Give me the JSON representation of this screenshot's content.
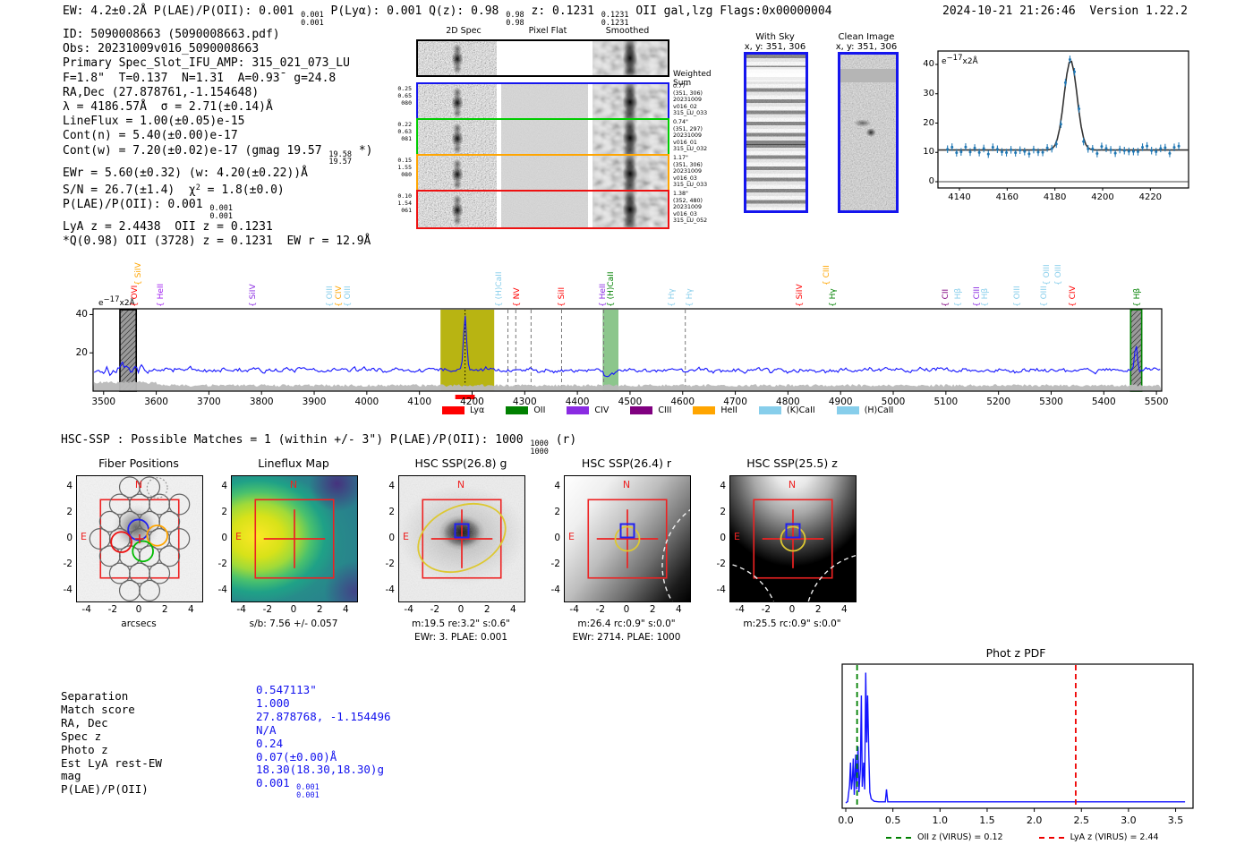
{
  "header": {
    "segments": [
      {
        "t": "EW: 4.2±0.2Å  P(LAE)/P(OII): 0.001 "
      },
      {
        "stack": [
          "0.001",
          "0.001"
        ]
      },
      {
        "t": "  P(Lyα): 0.001  Q(z): 0.98 "
      },
      {
        "stack": [
          "0.98",
          "0.98"
        ]
      },
      {
        "t": "  z: 0.1231 "
      },
      {
        "stack": [
          "0.1231",
          "0.1231"
        ]
      },
      {
        "t": " OII   gal,lzg  Flags:0x00000004"
      }
    ],
    "timestamp": "2024-10-21 21:26:46",
    "version": "Version 1.22.2"
  },
  "info": {
    "lines": [
      [
        {
          "t": "ID: 5090008663 (5090008663.pdf)"
        }
      ],
      [
        {
          "t": "Obs: 20231009v016_5090008663"
        }
      ],
      [
        {
          "t": "Primary Spec_Slot_IFU_AMP: 315_021_073_LU"
        }
      ],
      [
        {
          "t": "F=1.8\"  T=0.13̄7  N=1.3̄1  A=0.93̄  g=24.8"
        }
      ],
      [
        {
          "t": "RA,Dec (27.878761,-1.154648)"
        }
      ],
      [
        {
          "t": "λ = 4186.57Å  σ = 2.71(±0.14)Å"
        }
      ],
      [
        {
          "t": "LineFlux = 1.00(±0.05)e-15"
        }
      ],
      [
        {
          "t": "Cont(n) = 5.40(±0.00)e-17"
        }
      ],
      [
        {
          "t": "Cont(w) = 7.20(±0.02)e-17 (gmag 19.57 "
        },
        {
          "stack": [
            "19.58",
            "19.57"
          ]
        },
        {
          "t": " *)"
        }
      ],
      [
        {
          "t": "EWr = 5.60(±0.32) (w: 4.20(±0.22))Å"
        }
      ],
      [
        {
          "t": "S/N = 26.7(±1.4)  χ"
        },
        {
          "sup": "2"
        },
        {
          "t": " = 1.8(±0.0)"
        }
      ],
      [
        {
          "t": "P(LAE)/P(OII): 0.001 "
        },
        {
          "stack": [
            "0.001",
            "0.001"
          ]
        }
      ],
      [
        {
          "t": "LyA z = 2.4438  OII z = 0.1231"
        }
      ],
      [
        {
          "t": "*Q(0.98) OII (3728) z = 0.1231  EW r = 12.9Å"
        }
      ]
    ]
  },
  "cutouts": {
    "col_titles": [
      "2D Spec",
      "Pixel Flat",
      "Smoothed"
    ],
    "weighted_sum": [
      "Weighted",
      "Sum"
    ],
    "rows": [
      {
        "color": "#000000",
        "left": [],
        "right": []
      },
      {
        "color": "#1515ee",
        "left": [
          "0.25",
          "0.65",
          "080"
        ],
        "right": [
          "0.77\"",
          "(351, 306)",
          "20231009",
          "v016_02",
          "315_LU_033"
        ]
      },
      {
        "color": "#00cc00",
        "left": [
          "0.22",
          "0.63",
          "081"
        ],
        "right": [
          "0.74\"",
          "(351, 297)",
          "20231009",
          "v016_01",
          "315_LU_032"
        ]
      },
      {
        "color": "#ffa500",
        "left": [
          "0.15",
          "1.55",
          "080"
        ],
        "right": [
          "1.17\"",
          "(351, 306)",
          "20231009",
          "v016_03",
          "315_LU_033"
        ]
      },
      {
        "color": "#ee1111",
        "left": [
          "0.10",
          "1.54",
          "061"
        ],
        "right": [
          "1.38\"",
          "(352, 480)",
          "20231009",
          "v016_03",
          "315_LU_052"
        ]
      }
    ],
    "with_sky": {
      "title": "With Sky",
      "coords": "x, y: 351, 306"
    },
    "clean_image": {
      "title": "Clean Image",
      "coords": "x, y: 351, 306"
    }
  },
  "hsc": {
    "segments": [
      {
        "t": "HSC-SSP : Possible Matches = 1 (within +/- 3\")  P(LAE)/P(OII): 1000 "
      },
      {
        "stack": [
          "1000",
          "1000"
        ]
      },
      {
        "t": " (r)"
      }
    ]
  },
  "panels": {
    "ticks": [
      "-4",
      "-2",
      "0",
      "2",
      "4"
    ],
    "compass": {
      "n": "N",
      "e": "E"
    },
    "items": [
      {
        "id": "fiber_positions",
        "title": "Fiber Positions",
        "xlabel": "arcsecs",
        "xlabel2": ""
      },
      {
        "id": "lineflux_map",
        "title": "Lineflux Map",
        "xlabel": "s/b: 7.56 +/- 0.057",
        "xlabel2": ""
      },
      {
        "id": "hsc_g",
        "title": "HSC SSP(26.8) g",
        "xlabel": "m:19.5  re:3.2\"  s:0.6\"",
        "xlabel2": "EWr: 3. PLAE: 0.001"
      },
      {
        "id": "hsc_r",
        "title": "HSC SSP(26.4) r",
        "xlabel": "m:26.4 rc:0.9\"  s:0.0\"",
        "xlabel2": "EWr: 2714. PLAE: 1000"
      },
      {
        "id": "hsc_z",
        "title": "HSC SSP(25.5) z",
        "xlabel": "m:25.5 rc:0.9\"  s:0.0\"",
        "xlabel2": ""
      }
    ]
  },
  "kv": {
    "labels": [
      "Separation",
      "Match score",
      "RA, Dec",
      "Spec z",
      "Photo z",
      "Est LyA rest-EW",
      "mag",
      "P(LAE)/P(OII)"
    ],
    "values": [
      [
        {
          "t": "0.547113\""
        }
      ],
      [
        {
          "t": "1.000"
        }
      ],
      [
        {
          "t": "27.878768, -1.154496"
        }
      ],
      [
        {
          "t": "N/A"
        }
      ],
      [
        {
          "t": "0.24"
        }
      ],
      [
        {
          "t": "0.07(±0.00)Å"
        }
      ],
      [
        {
          "t": "18.30(18.30,18.30)g"
        }
      ],
      [
        {
          "t": "0.001 "
        },
        {
          "stack": [
            "0.001",
            "0.001"
          ]
        }
      ]
    ]
  },
  "colors": {
    "red": "#ff0000",
    "orange": "#ffa500",
    "purple": "#a020f0",
    "violet": "#8a2be2",
    "green": "#008000",
    "lightblue": "#87ceeb",
    "darkpurple": "#800080",
    "spectrum_line": "#1414ff",
    "point_blue": "#1f77b4",
    "accent_blue": "#1515ee"
  },
  "chart_data": [
    {
      "id": "line_fit_inset",
      "type": "scatter+line",
      "unit_label": [
        {
          "t": "e"
        },
        {
          "sup": "−17"
        },
        {
          "t": "x2Å"
        }
      ],
      "x_ticks": [
        4140,
        4160,
        4180,
        4200,
        4220
      ],
      "y_ticks": [
        0,
        10,
        20,
        30,
        40
      ],
      "xlim": [
        4131,
        4236
      ],
      "ylim": [
        -2,
        44
      ],
      "continuum": 10.8,
      "peak": {
        "center": 4186.57,
        "sigma": 2.71,
        "amplitude": 30.6
      },
      "errorbar": 1.3
    },
    {
      "id": "main_spectrum",
      "type": "line",
      "unit_label": [
        {
          "t": "e"
        },
        {
          "sup": "−17"
        },
        {
          "t": "x2Å"
        }
      ],
      "xlim": [
        3480,
        5510
      ],
      "ylim": [
        0,
        43
      ],
      "x_ticks": [
        3500,
        3600,
        3700,
        3800,
        3900,
        4000,
        4100,
        4200,
        4300,
        4400,
        4500,
        4600,
        4700,
        4800,
        4900,
        5000,
        5100,
        5200,
        5300,
        5400,
        5500
      ],
      "y_ticks": [
        20,
        40
      ],
      "continuum": 11,
      "noise_amp": 2.6,
      "noise_amp_blue_end": 6.0,
      "emission_peak": {
        "center": 4186.57,
        "sigma": 2.8,
        "amplitude": 29
      },
      "secondary_peak": {
        "center": 5461,
        "sigma": 2.5,
        "amplitude": 13
      },
      "absorption_dip": {
        "center": 4458,
        "sigma": 9,
        "depth": 2.5
      },
      "bands": {
        "olive": [
          4140,
          4242
        ],
        "green": [
          4448,
          4478
        ],
        "hatch_black": [
          3531,
          3562
        ],
        "hatch_green": [
          5451,
          5472
        ]
      },
      "band_colors": {
        "olive": "#b8b412",
        "green": "rgba(0,128,0,0.45)",
        "hatch_fill": "#9a9a9a"
      },
      "dashed_vlines": [
        4268,
        4283,
        4312,
        4370,
        4450,
        4605
      ],
      "dotted_vline": 4186.6,
      "red_axis_marker": [
        4168,
        4205
      ],
      "line_labels": [
        [
          3565,
          "SiIV",
          "orange",
          2
        ],
        [
          3558,
          "OVI",
          "red",
          1
        ],
        [
          3608,
          "HeII",
          "purple",
          1
        ],
        [
          3782,
          "SiIV",
          "violet",
          1
        ],
        [
          3928,
          "OIII",
          "lightblue",
          1
        ],
        [
          3945,
          "CIV",
          "orange",
          1
        ],
        [
          3963,
          "OIII",
          "lightblue",
          1
        ],
        [
          4250,
          "(H)CaII",
          "lightblue",
          1
        ],
        [
          4285,
          "NV",
          "red",
          1
        ],
        [
          4370,
          "SiII",
          "red",
          1
        ],
        [
          4447,
          "HeII",
          "violet",
          1
        ],
        [
          4462,
          "(H)CaII",
          "green",
          1
        ],
        [
          4578,
          "Hγ",
          "lightblue",
          1
        ],
        [
          4612,
          "Hγ",
          "lightblue",
          1
        ],
        [
          4822,
          "SiIV",
          "red",
          1
        ],
        [
          4872,
          "CIII",
          "orange",
          2
        ],
        [
          4884,
          "Hγ",
          "green",
          1
        ],
        [
          5098,
          "CII",
          "darkpurple",
          1
        ],
        [
          5122,
          "Hβ",
          "lightblue",
          1
        ],
        [
          5158,
          "CIII",
          "violet",
          1
        ],
        [
          5174,
          "Hβ",
          "lightblue",
          1
        ],
        [
          5235,
          "OIII",
          "lightblue",
          1
        ],
        [
          5285,
          "OIII",
          "lightblue",
          1
        ],
        [
          5290,
          "OIII",
          "lightblue",
          2
        ],
        [
          5312,
          "OIII",
          "lightblue",
          2
        ],
        [
          5340,
          "CIV",
          "red",
          1
        ],
        [
          5462,
          "Hβ",
          "green",
          1
        ]
      ],
      "legend": [
        {
          "label": "Lyα",
          "color": "#ff0000"
        },
        {
          "label": "OII",
          "color": "#008000"
        },
        {
          "label": "CIV",
          "color": "#8a2be2"
        },
        {
          "label": "CIII",
          "color": "#800080"
        },
        {
          "label": "HeII",
          "color": "#ffa500"
        },
        {
          "label": "(K)CaII",
          "color": "#87ceeb"
        },
        {
          "label": "(H)CaII",
          "color": "#87ceeb"
        }
      ]
    },
    {
      "id": "photz_pdf",
      "type": "line",
      "title": "Phot z PDF",
      "x_ticks": [
        "0.0",
        "0.5",
        "1.0",
        "1.5",
        "2.0",
        "2.5",
        "3.0",
        "3.5"
      ],
      "xlim": [
        -0.05,
        3.65
      ],
      "points": [
        [
          0,
          0.0
        ],
        [
          0.02,
          0.01
        ],
        [
          0.04,
          0.13
        ],
        [
          0.05,
          0.3
        ],
        [
          0.06,
          0.1
        ],
        [
          0.07,
          0.17
        ],
        [
          0.08,
          0.33
        ],
        [
          0.09,
          0.06
        ],
        [
          0.105,
          0.36
        ],
        [
          0.115,
          0.1
        ],
        [
          0.13,
          0.42
        ],
        [
          0.14,
          0.08
        ],
        [
          0.155,
          0.25
        ],
        [
          0.165,
          0.8
        ],
        [
          0.175,
          0.12
        ],
        [
          0.19,
          0.3
        ],
        [
          0.2,
          0.1
        ],
        [
          0.212,
          0.97
        ],
        [
          0.222,
          0.45
        ],
        [
          0.232,
          0.8
        ],
        [
          0.245,
          0.35
        ],
        [
          0.255,
          0.08
        ],
        [
          0.27,
          0.03
        ],
        [
          0.3,
          0.012
        ],
        [
          0.35,
          0.008
        ],
        [
          0.42,
          0.008
        ],
        [
          0.432,
          0.1
        ],
        [
          0.445,
          0.008
        ],
        [
          3.6,
          0.008
        ]
      ],
      "vlines": [
        {
          "x": 0.12,
          "color": "#008000",
          "label": "OII z (VIRUS) = 0.12"
        },
        {
          "x": 2.44,
          "color": "#ee0000",
          "label": "LyA z (VIRUS) = 2.44"
        }
      ]
    },
    {
      "id": "fiber_map",
      "type": "scatter",
      "gray_circles": [
        [
          -0.76,
          3.96
        ],
        [
          0.76,
          3.96
        ],
        [
          -1.52,
          2.64
        ],
        [
          0,
          2.64
        ],
        [
          1.52,
          2.64
        ],
        [
          3.04,
          2.64
        ],
        [
          -2.28,
          1.32
        ],
        [
          -0.76,
          1.32
        ],
        [
          0.76,
          1.32
        ],
        [
          2.28,
          1.32
        ],
        [
          -3.04,
          0
        ],
        [
          -1.52,
          0
        ],
        [
          0,
          0
        ],
        [
          1.52,
          0
        ],
        [
          3.04,
          0
        ],
        [
          -2.28,
          -1.32
        ],
        [
          -0.76,
          -1.32
        ],
        [
          0.76,
          -1.32
        ],
        [
          2.28,
          -1.32
        ],
        [
          -1.52,
          -2.64
        ],
        [
          0,
          -2.64
        ],
        [
          1.52,
          -2.64
        ],
        [
          -0.76,
          -3.96
        ],
        [
          0.76,
          -3.96
        ]
      ],
      "colored_circles": [
        {
          "x": -0.1,
          "y": 0.7,
          "color": "#2222ee"
        },
        {
          "x": 1.35,
          "y": 0.25,
          "color": "#ffa500"
        },
        {
          "x": 0.25,
          "y": -0.95,
          "color": "#00bb00"
        },
        {
          "x": -1.4,
          "y": -0.25,
          "color": "#ee1111"
        }
      ],
      "radius_arcsec": 0.78
    }
  ]
}
